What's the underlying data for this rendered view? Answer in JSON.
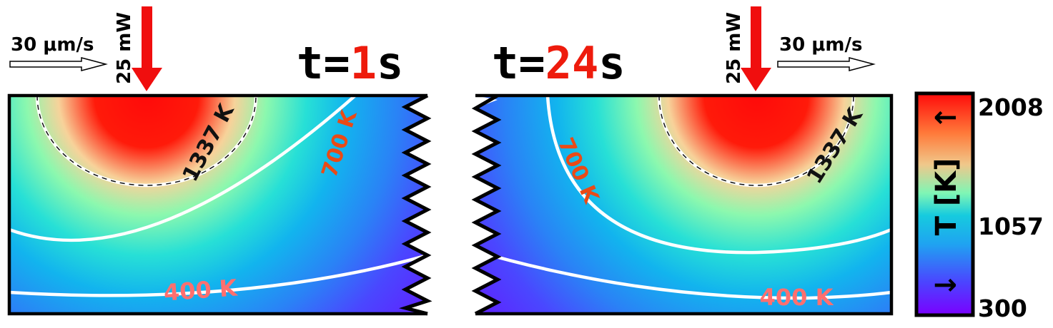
{
  "left_panel": {
    "time_prefix": "t=",
    "time_value": "1",
    "time_unit": "s",
    "speed_label": "30 μm/s",
    "power_label": "25 mW",
    "contours": {
      "melt": "1337 K",
      "mid": "700 K",
      "low": "400 K"
    }
  },
  "right_panel": {
    "time_prefix": "t=",
    "time_value": "24",
    "time_unit": "s",
    "speed_label": "30 μm/s",
    "power_label": "25 mW",
    "contours": {
      "melt": "1337 K",
      "mid": "700 K",
      "low": "400 K"
    }
  },
  "colorbar": {
    "label": "T [K]",
    "tick_max": "2008",
    "tick_mid": "1057",
    "tick_min": "300",
    "up_arrow": "↑",
    "down_arrow": "↓"
  },
  "colors": {
    "laser": "#f00e0e",
    "time_value": "#ee1b0c",
    "label_700": "#ea4a16",
    "label_400": "#ff6f6f",
    "label_1337": "#111111"
  }
}
